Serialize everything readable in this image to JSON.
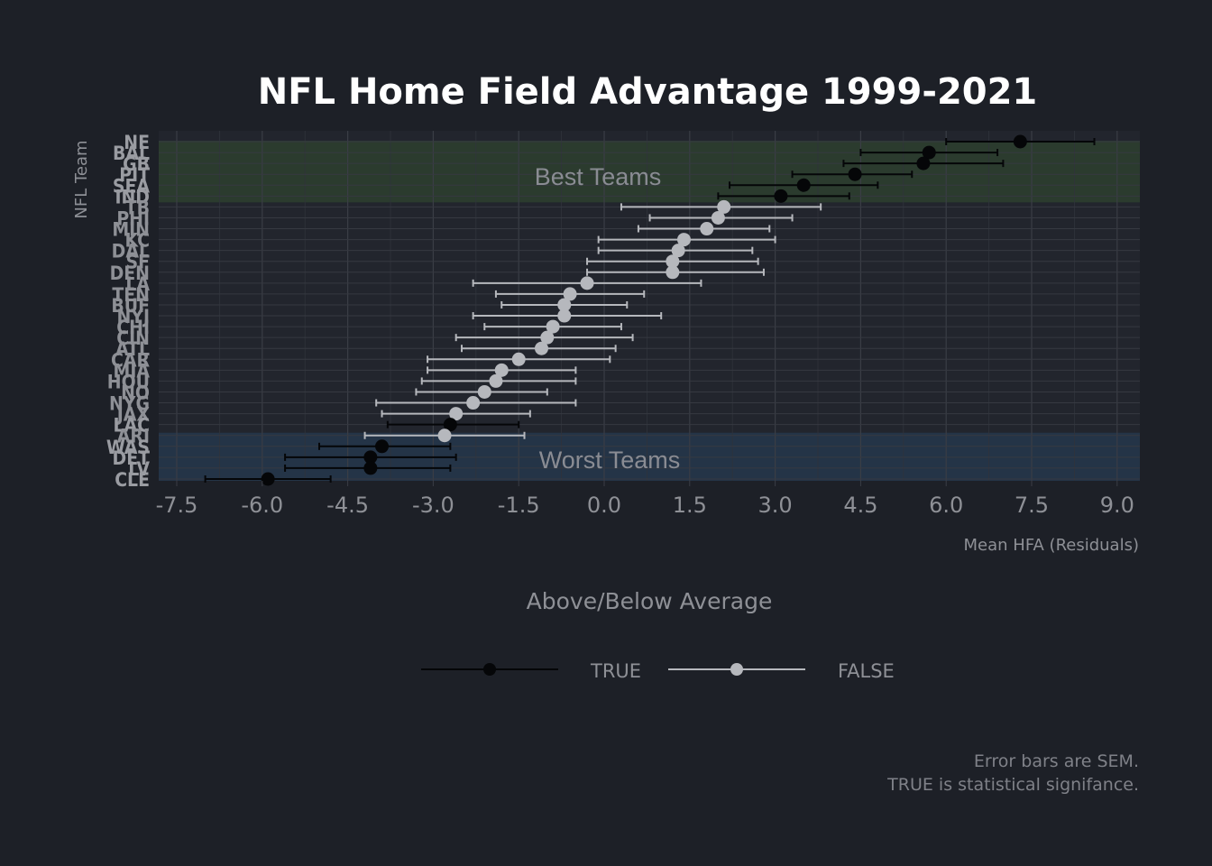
{
  "chart_data": {
    "type": "scatter",
    "title": "NFL Home Field Advantage 1999-2021",
    "xlabel": "Mean HFA (Residuals)",
    "ylabel": "NFL Team",
    "xlim": [
      -7.8,
      9.4
    ],
    "x_ticks": [
      "-7.5",
      "-6.0",
      "-4.5",
      "-3.0",
      "-1.5",
      "0.0",
      "1.5",
      "3.0",
      "4.5",
      "6.0",
      "7.5",
      "9.0"
    ],
    "grid": true,
    "legend": {
      "title": "Above/Below Average",
      "placement": "bottom",
      "entries": [
        {
          "label": "TRUE",
          "color": "#000000"
        },
        {
          "label": "FALSE",
          "color": "#b6b8bd"
        }
      ]
    },
    "bands": [
      {
        "label": "Best Teams",
        "color": "#2b3b2e"
      },
      {
        "label": "Worst Teams",
        "color": "#243447"
      }
    ],
    "caption": [
      "Error bars are SEM.",
      "TRUE is statistical signifance."
    ],
    "points": [
      {
        "team": "NE",
        "mean": 7.3,
        "lo": 6.0,
        "hi": 8.6,
        "significant": true
      },
      {
        "team": "BAL",
        "mean": 5.7,
        "lo": 4.5,
        "hi": 6.9,
        "significant": true
      },
      {
        "team": "GB",
        "mean": 5.6,
        "lo": 4.2,
        "hi": 7.0,
        "significant": true
      },
      {
        "team": "PIT",
        "mean": 4.4,
        "lo": 3.3,
        "hi": 5.4,
        "significant": true
      },
      {
        "team": "SEA",
        "mean": 3.5,
        "lo": 2.2,
        "hi": 4.8,
        "significant": true
      },
      {
        "team": "IND",
        "mean": 3.1,
        "lo": 2.0,
        "hi": 4.3,
        "significant": true
      },
      {
        "team": "TB",
        "mean": 2.1,
        "lo": 0.3,
        "hi": 3.8,
        "significant": false
      },
      {
        "team": "PHI",
        "mean": 2.0,
        "lo": 0.8,
        "hi": 3.3,
        "significant": false
      },
      {
        "team": "MIN",
        "mean": 1.8,
        "lo": 0.6,
        "hi": 2.9,
        "significant": false
      },
      {
        "team": "KC",
        "mean": 1.4,
        "lo": -0.1,
        "hi": 3.0,
        "significant": false
      },
      {
        "team": "DAL",
        "mean": 1.3,
        "lo": -0.1,
        "hi": 2.6,
        "significant": false
      },
      {
        "team": "SF",
        "mean": 1.2,
        "lo": -0.3,
        "hi": 2.7,
        "significant": false
      },
      {
        "team": "DEN",
        "mean": 1.2,
        "lo": -0.3,
        "hi": 2.8,
        "significant": false
      },
      {
        "team": "LA",
        "mean": -0.3,
        "lo": -2.3,
        "hi": 1.7,
        "significant": false
      },
      {
        "team": "TEN",
        "mean": -0.6,
        "lo": -1.9,
        "hi": 0.7,
        "significant": false
      },
      {
        "team": "BUF",
        "mean": -0.7,
        "lo": -1.8,
        "hi": 0.4,
        "significant": false
      },
      {
        "team": "NYJ",
        "mean": -0.7,
        "lo": -2.3,
        "hi": 1.0,
        "significant": false
      },
      {
        "team": "CHI",
        "mean": -0.9,
        "lo": -2.1,
        "hi": 0.3,
        "significant": false
      },
      {
        "team": "CIN",
        "mean": -1.0,
        "lo": -2.6,
        "hi": 0.5,
        "significant": false
      },
      {
        "team": "ATL",
        "mean": -1.1,
        "lo": -2.5,
        "hi": 0.2,
        "significant": false
      },
      {
        "team": "CAR",
        "mean": -1.5,
        "lo": -3.1,
        "hi": 0.1,
        "significant": false
      },
      {
        "team": "MIA",
        "mean": -1.8,
        "lo": -3.1,
        "hi": -0.5,
        "significant": false
      },
      {
        "team": "HOU",
        "mean": -1.9,
        "lo": -3.2,
        "hi": -0.5,
        "significant": false
      },
      {
        "team": "NO",
        "mean": -2.1,
        "lo": -3.3,
        "hi": -1.0,
        "significant": false
      },
      {
        "team": "NYG",
        "mean": -2.3,
        "lo": -4.0,
        "hi": -0.5,
        "significant": false
      },
      {
        "team": "JAX",
        "mean": -2.6,
        "lo": -3.9,
        "hi": -1.3,
        "significant": false
      },
      {
        "team": "LAC",
        "mean": -2.7,
        "lo": -3.8,
        "hi": -1.5,
        "significant": true
      },
      {
        "team": "ARI",
        "mean": -2.8,
        "lo": -4.2,
        "hi": -1.4,
        "significant": false
      },
      {
        "team": "WAS",
        "mean": -3.9,
        "lo": -5.0,
        "hi": -2.7,
        "significant": true
      },
      {
        "team": "DET",
        "mean": -4.1,
        "lo": -5.6,
        "hi": -2.6,
        "significant": true
      },
      {
        "team": "LV",
        "mean": -4.1,
        "lo": -5.6,
        "hi": -2.7,
        "significant": true
      },
      {
        "team": "CLE",
        "mean": -5.9,
        "lo": -7.0,
        "hi": -4.8,
        "significant": true
      }
    ]
  }
}
